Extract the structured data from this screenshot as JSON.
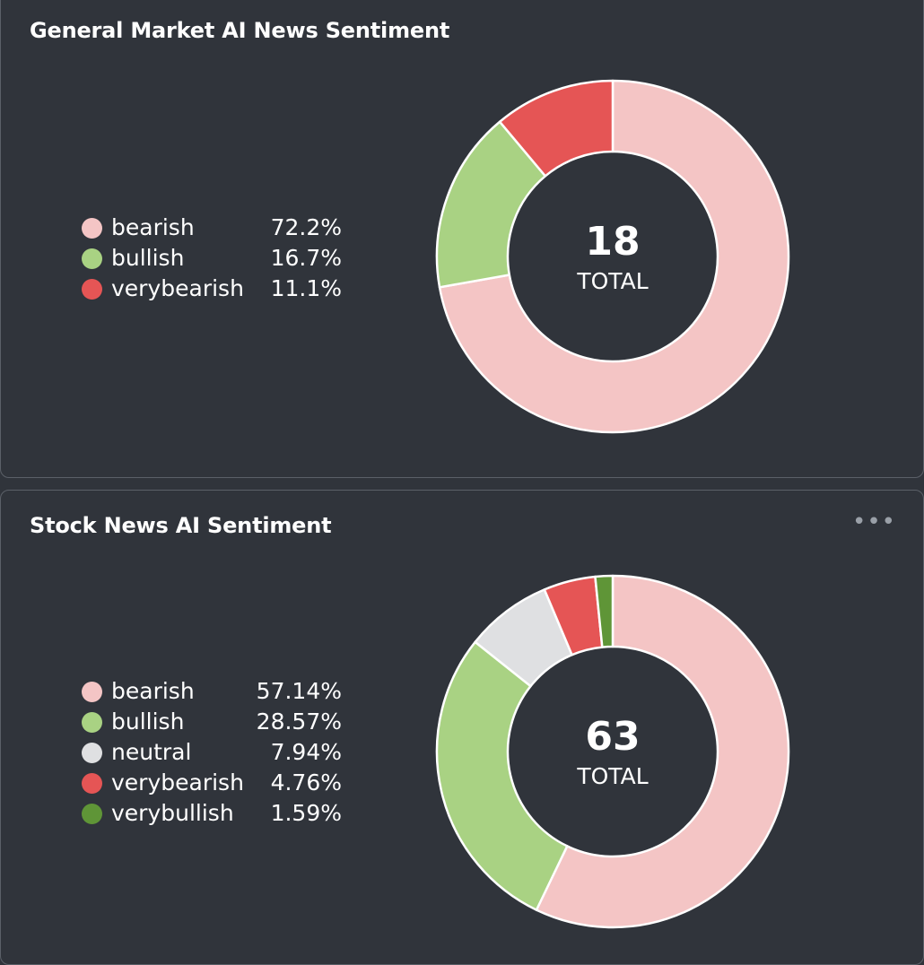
{
  "colors": {
    "bearish": "#f4c5c5",
    "bullish": "#a9d283",
    "neutral": "#dfe0e2",
    "verybearish": "#e55555",
    "verybullish": "#5f9537"
  },
  "menu_icon": "more-horizontal-icon",
  "chart_data": [
    {
      "type": "pie",
      "title": "General Market AI News Sentiment",
      "total": "18",
      "total_label": "TOTAL",
      "slices": [
        {
          "label": "bearish",
          "value": 72.2,
          "display": "72.2%",
          "color_key": "bearish"
        },
        {
          "label": "bullish",
          "value": 16.7,
          "display": "16.7%",
          "color_key": "bullish"
        },
        {
          "label": "verybearish",
          "value": 11.1,
          "display": "11.1%",
          "color_key": "verybearish"
        }
      ],
      "legend": "left"
    },
    {
      "type": "pie",
      "title": "Stock News AI Sentiment",
      "total": "63",
      "total_label": "TOTAL",
      "slices": [
        {
          "label": "bearish",
          "value": 57.14,
          "display": "57.14%",
          "color_key": "bearish"
        },
        {
          "label": "bullish",
          "value": 28.57,
          "display": "28.57%",
          "color_key": "bullish"
        },
        {
          "label": "neutral",
          "value": 7.94,
          "display": "7.94%",
          "color_key": "neutral"
        },
        {
          "label": "verybearish",
          "value": 4.76,
          "display": "4.76%",
          "color_key": "verybearish"
        },
        {
          "label": "verybullish",
          "value": 1.59,
          "display": "1.59%",
          "color_key": "verybullish"
        }
      ],
      "legend": "left"
    }
  ]
}
